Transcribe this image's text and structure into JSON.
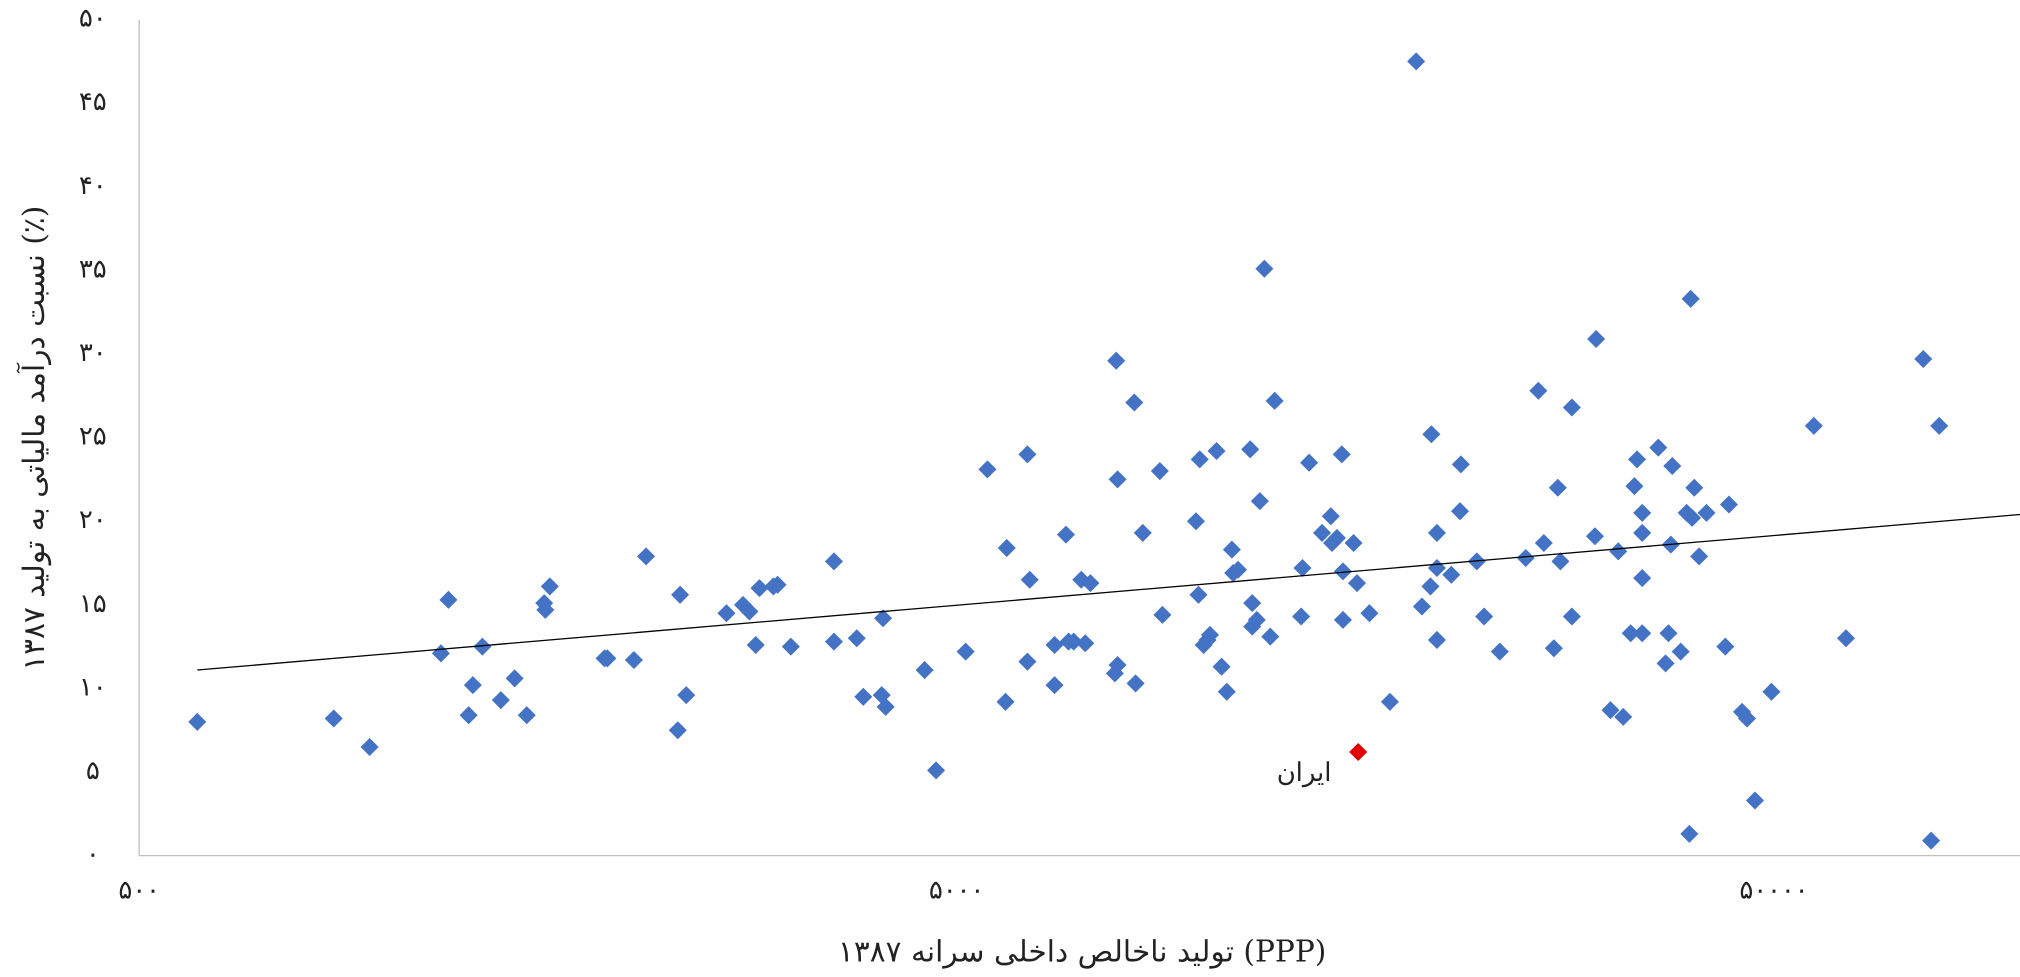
{
  "chart_data": {
    "type": "scatter",
    "xlabel": "تولید ناخالص داخلی سرانه ۱۳۸۷ (PPP)",
    "ylabel": "نسبت درآمد مالیاتی به تولید ۱۳۸۷ (٪)",
    "xscale": "log",
    "xlim": [
      500,
      100000
    ],
    "xticks": [
      {
        "value": 500,
        "label": "۵۰۰"
      },
      {
        "value": 5000,
        "label": "۵۰۰۰"
      },
      {
        "value": 50000,
        "label": "۵۰۰۰۰"
      }
    ],
    "ylim": [
      0,
      50
    ],
    "yticks": [
      {
        "value": 0,
        "label": "۰"
      },
      {
        "value": 5,
        "label": "۵"
      },
      {
        "value": 10,
        "label": "۱۰"
      },
      {
        "value": 15,
        "label": "۱۵"
      },
      {
        "value": 20,
        "label": "۲۰"
      },
      {
        "value": 25,
        "label": "۲۵"
      },
      {
        "value": 30,
        "label": "۳۰"
      },
      {
        "value": 35,
        "label": "۳۵"
      },
      {
        "value": 40,
        "label": "۴۰"
      },
      {
        "value": 45,
        "label": "۴۵"
      },
      {
        "value": 50,
        "label": "۵۰"
      }
    ],
    "grid": false,
    "series": [
      {
        "color": "#4472c4",
        "x": [
          589,
          865,
          957,
          1170,
          1195,
          1265,
          1280,
          1315,
          1385,
          1440,
          1490,
          1565,
          1570,
          1590,
          1855,
          1870,
          2015,
          2085,
          2280,
          2295,
          2335,
          2615,
          2740,
          2790,
          2840,
          2870,
          2985,
          3020,
          3135,
          3540,
          3540,
          3775,
          3845,
          4050,
          4065,
          4095,
          4570,
          4720,
          5130,
          5455,
          5740,
          5760,
          6105,
          6105,
          6145,
          6590,
          6590,
          6805,
          6855,
          6955,
          7105,
          7185,
          7290,
          7810,
          7840,
          7870,
          7870,
          8250,
          8280,
          8450,
          8865,
          8930,
          9815,
          9885,
          9920,
          10030,
          10140,
          10210,
          10400,
          10550,
          10705,
          10860,
          10900,
          11050,
          11435,
          11500,
          11500,
          11650,
          11750,
          11900,
          12100,
          12250,
          13200,
          13250,
          13500,
          14000,
          14350,
          14400,
          14600,
          14800,
          14850,
          14850,
          15300,
          15450,
          16000,
          16950,
          18250,
          18550,
          19000,
          19050,
          19350,
          19350,
          19350,
          20150,
          20650,
          20700,
          21650,
          22100,
          23100,
          24850,
          25750,
          26150,
          26900,
          27200,
          27400,
          28300,
          28300,
          30200,
          30300,
          31550,
          32250,
          32700,
          33400,
          33750,
          34000,
          34500,
          34500,
          34500,
          34500,
          36100,
          36850,
          37150,
          37400,
          37550,
          38450,
          39100,
          39400,
          39550,
          39700,
          39950,
          40500,
          41350,
          43600,
          44050,
          45700,
          46350,
          47400,
          49650,
          55950,
          61250,
          76150,
          77850,
          79650
        ],
        "values": [
          8.0,
          8.2,
          6.5,
          12.1,
          15.3,
          8.4,
          10.2,
          12.5,
          9.3,
          10.6,
          8.4,
          15.1,
          14.7,
          16.1,
          11.8,
          11.8,
          11.7,
          17.9,
          7.5,
          15.6,
          9.6,
          14.5,
          15.0,
          14.6,
          12.6,
          16.0,
          16.1,
          16.2,
          12.5,
          17.6,
          12.8,
          13.0,
          9.5,
          9.6,
          14.2,
          8.9,
          11.1,
          5.1,
          12.2,
          23.1,
          9.2,
          18.4,
          24.0,
          11.6,
          16.5,
          10.2,
          12.6,
          19.2,
          12.8,
          12.8,
          16.5,
          12.7,
          16.3,
          10.9,
          29.6,
          22.5,
          11.4,
          27.1,
          10.3,
          19.3,
          23.0,
          14.4,
          20.0,
          15.6,
          23.7,
          12.6,
          12.9,
          13.2,
          24.2,
          11.3,
          9.8,
          18.3,
          16.9,
          17.1,
          24.3,
          15.1,
          13.7,
          14.1,
          21.2,
          35.1,
          13.1,
          27.2,
          14.3,
          17.2,
          23.5,
          19.3,
          20.3,
          18.7,
          19.0,
          24.0,
          14.1,
          17.0,
          18.7,
          16.3,
          14.5,
          9.2,
          47.5,
          14.9,
          16.1,
          25.2,
          12.9,
          19.3,
          17.2,
          16.8,
          20.6,
          23.4,
          17.6,
          14.3,
          12.2,
          17.8,
          27.8,
          18.7,
          12.4,
          22.0,
          17.6,
          26.8,
          14.3,
          19.1,
          30.9,
          8.7,
          18.2,
          8.3,
          13.3,
          22.1,
          23.7,
          20.5,
          19.3,
          16.6,
          13.3,
          24.4,
          11.5,
          13.3,
          18.6,
          23.3,
          12.2,
          20.5,
          1.3,
          33.3,
          20.2,
          22.0,
          17.9,
          20.5,
          12.5,
          21.0,
          8.6,
          8.2,
          3.3,
          9.8,
          25.7,
          13.0,
          29.7,
          0.9,
          25.7
        ]
      },
      {
        "name": "ایران",
        "color": "#e00000",
        "x": [
          15500
        ],
        "values": [
          6.2
        ]
      }
    ],
    "trendline": {
      "color": "#000000",
      "x": [
        589,
        100000
      ],
      "values": [
        11.1,
        20.4
      ]
    }
  }
}
